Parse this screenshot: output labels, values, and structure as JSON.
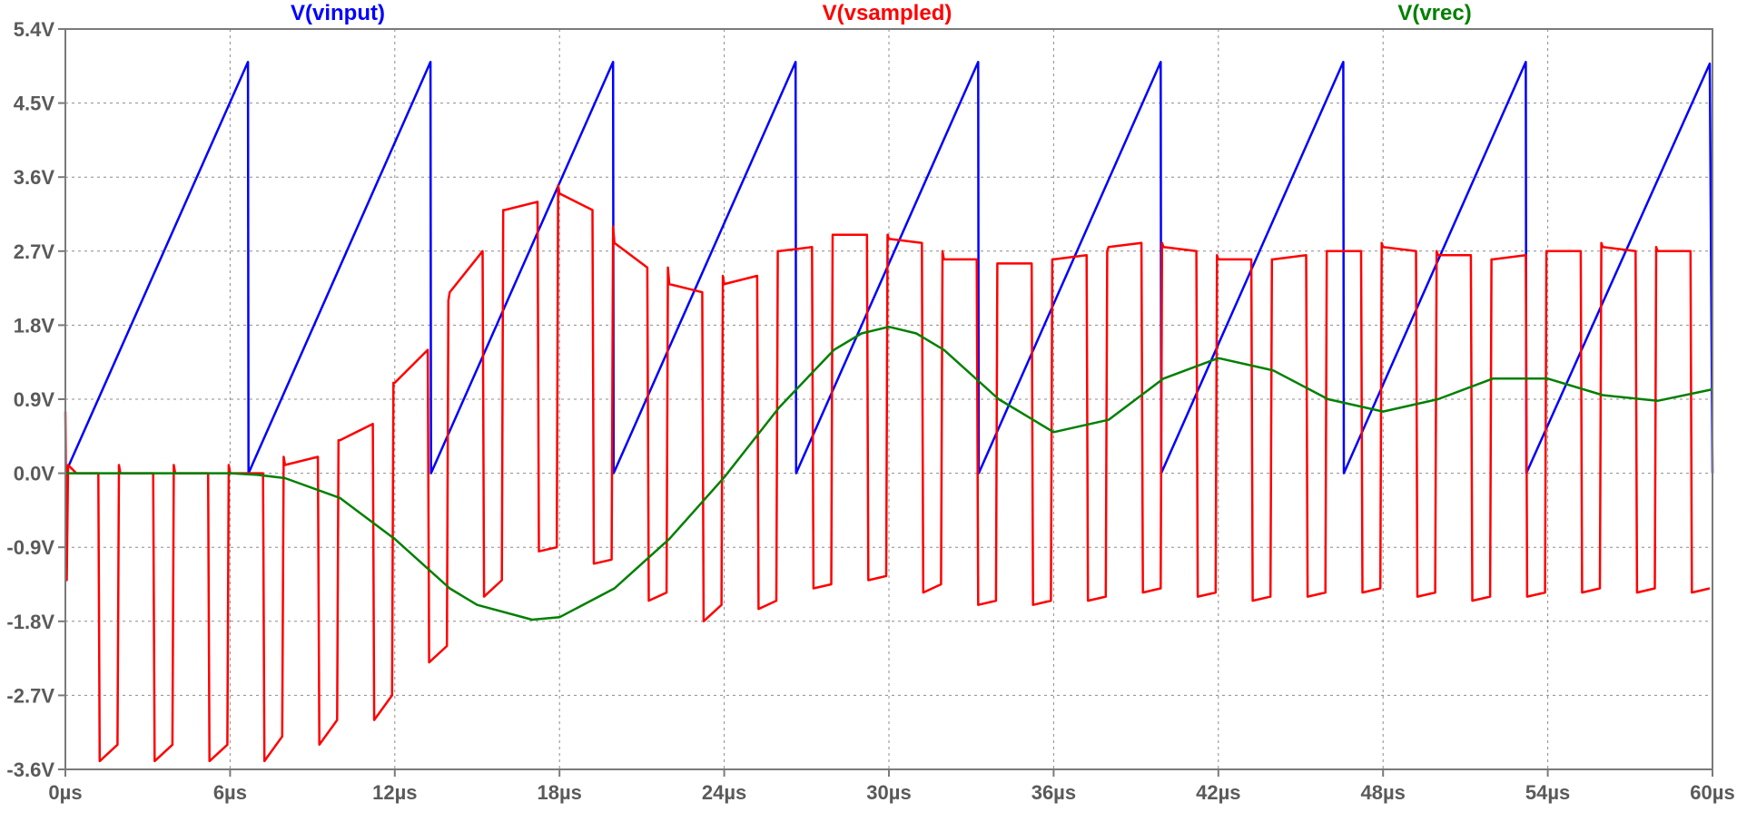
{
  "chart_data": {
    "type": "line",
    "title": "",
    "xlabel": "",
    "ylabel": "",
    "xlim": [
      0,
      60
    ],
    "ylim": [
      -3.6,
      5.4
    ],
    "x_unit": "µs",
    "y_unit": "V",
    "grid": true,
    "x_ticks": [
      0,
      6,
      12,
      18,
      24,
      30,
      36,
      42,
      48,
      54,
      60
    ],
    "x_tick_labels": [
      "0µs",
      "6µs",
      "12µs",
      "18µs",
      "24µs",
      "30µs",
      "36µs",
      "42µs",
      "48µs",
      "54µs",
      "60µs"
    ],
    "y_ticks": [
      5.4,
      4.5,
      3.6,
      2.7,
      1.8,
      0.9,
      0.0,
      -0.9,
      -1.8,
      -2.7,
      -3.6
    ],
    "y_tick_labels": [
      "5.4V",
      "4.5V",
      "3.6V",
      "2.7V",
      "1.8V",
      "0.9V",
      "0.0V",
      "-0.9V",
      "-1.8V",
      "-2.7V",
      "-3.6V"
    ],
    "legend_position": "top",
    "series": [
      {
        "name": "V(vinput)",
        "color": "#0000ff",
        "description_type": "sawtooth",
        "x": [
          0,
          6.65,
          6.67,
          13.3,
          13.32,
          19.95,
          19.97,
          26.6,
          26.62,
          33.25,
          33.27,
          39.9,
          39.92,
          46.55,
          46.57,
          53.2,
          53.22,
          59.9,
          60
        ],
        "y": [
          0,
          5.0,
          0,
          5.0,
          0,
          5.0,
          0,
          5.0,
          0,
          5.0,
          0,
          5.0,
          0,
          5.0,
          0,
          5.0,
          0,
          4.98,
          0
        ]
      },
      {
        "name": "V(vsampled)",
        "color": "#ff0000",
        "description_type": "sampled-pulse",
        "x": [
          0,
          0.05,
          0.1,
          0.4,
          1.2,
          1.25,
          1.9,
          1.95,
          2.0,
          2.2,
          3.2,
          3.25,
          3.9,
          3.95,
          4.0,
          4.2,
          5.2,
          5.25,
          5.9,
          5.95,
          6.0,
          6.2,
          7.2,
          7.25,
          7.9,
          7.95,
          8.0,
          9.2,
          9.25,
          9.9,
          9.95,
          10.0,
          11.2,
          11.25,
          11.9,
          11.95,
          12.0,
          13.2,
          13.25,
          13.9,
          13.95,
          14.0,
          15.2,
          15.25,
          15.9,
          15.95,
          16.0,
          17.2,
          17.25,
          17.9,
          17.95,
          18.0,
          19.2,
          19.25,
          19.9,
          19.95,
          20.0,
          21.2,
          21.25,
          21.9,
          21.95,
          22.0,
          23.2,
          23.25,
          23.9,
          23.95,
          24.0,
          25.2,
          25.25,
          25.9,
          25.95,
          26.0,
          27.2,
          27.25,
          27.9,
          27.95,
          28.0,
          29.2,
          29.25,
          29.9,
          29.95,
          30.0,
          31.2,
          31.25,
          31.9,
          31.95,
          32.0,
          33.2,
          33.25,
          33.9,
          33.95,
          34.0,
          35.2,
          35.25,
          35.9,
          35.95,
          36.0,
          37.2,
          37.25,
          37.9,
          37.95,
          38.0,
          39.2,
          39.25,
          39.9,
          39.95,
          40.0,
          41.2,
          41.25,
          41.9,
          41.95,
          42.0,
          43.2,
          43.25,
          43.9,
          43.95,
          44.0,
          45.2,
          45.25,
          45.9,
          45.95,
          46.0,
          47.2,
          47.25,
          47.9,
          47.95,
          48.0,
          49.2,
          49.25,
          49.9,
          49.95,
          50.0,
          51.2,
          51.25,
          51.9,
          51.95,
          52.0,
          53.2,
          53.25,
          53.9,
          53.95,
          54.0,
          55.2,
          55.25,
          55.9,
          55.95,
          56.0,
          57.2,
          57.25,
          57.9,
          57.95,
          58.0,
          59.2,
          59.25,
          59.9
        ],
        "y": [
          0.75,
          -1.3,
          0.1,
          0.0,
          0.0,
          -3.5,
          -3.3,
          0.1,
          0.0,
          0.0,
          0.0,
          -3.5,
          -3.3,
          0.1,
          0.0,
          0.0,
          0.0,
          -3.5,
          -3.3,
          0.1,
          0.0,
          0.0,
          0.0,
          -3.5,
          -3.2,
          0.2,
          0.1,
          0.2,
          -3.3,
          -3.0,
          0.4,
          0.4,
          0.6,
          -3.0,
          -2.7,
          1.1,
          1.1,
          1.5,
          -2.3,
          -2.1,
          2.1,
          2.2,
          2.7,
          -1.5,
          -1.3,
          3.2,
          3.2,
          3.3,
          -0.95,
          -0.9,
          3.5,
          3.4,
          3.2,
          -1.1,
          -1.05,
          3.0,
          2.8,
          2.5,
          -1.55,
          -1.45,
          2.5,
          2.3,
          2.2,
          -1.8,
          -1.6,
          2.4,
          2.3,
          2.4,
          -1.65,
          -1.55,
          2.7,
          2.7,
          2.75,
          -1.4,
          -1.35,
          2.9,
          2.9,
          2.9,
          -1.3,
          -1.25,
          2.9,
          2.85,
          2.8,
          -1.45,
          -1.35,
          2.7,
          2.6,
          2.6,
          -1.6,
          -1.55,
          2.55,
          2.55,
          2.55,
          -1.6,
          -1.55,
          2.6,
          2.6,
          2.65,
          -1.55,
          -1.5,
          2.7,
          2.75,
          2.8,
          -1.45,
          -1.4,
          2.8,
          2.75,
          2.7,
          -1.5,
          -1.45,
          2.65,
          2.6,
          2.6,
          -1.55,
          -1.5,
          2.6,
          2.6,
          2.65,
          -1.5,
          -1.45,
          2.7,
          2.7,
          2.7,
          -1.45,
          -1.4,
          2.8,
          2.75,
          2.7,
          -1.5,
          -1.45,
          2.7,
          2.65,
          2.65,
          -1.55,
          -1.5,
          2.6,
          2.6,
          2.65,
          -1.5,
          -1.45,
          2.7,
          2.7,
          2.7,
          -1.45,
          -1.4,
          2.8,
          2.75,
          2.7,
          -1.45,
          -1.4,
          2.75,
          2.7,
          2.7,
          -1.45,
          -1.4
        ]
      },
      {
        "name": "V(vrec)",
        "color": "#008000",
        "description_type": "reconstructed",
        "x": [
          0,
          2,
          4,
          6,
          7,
          8,
          10,
          12,
          14,
          15,
          17,
          18,
          20,
          22,
          24,
          26,
          28,
          29,
          30,
          31,
          32,
          34,
          36,
          38,
          40,
          42,
          44,
          46,
          48,
          50,
          52,
          54,
          56,
          58,
          60
        ],
        "y": [
          0,
          0,
          0,
          0,
          -0.02,
          -0.06,
          -0.3,
          -0.8,
          -1.4,
          -1.6,
          -1.78,
          -1.75,
          -1.4,
          -0.8,
          -0.05,
          0.8,
          1.5,
          1.7,
          1.78,
          1.7,
          1.5,
          0.9,
          0.5,
          0.65,
          1.15,
          1.4,
          1.25,
          0.9,
          0.75,
          0.9,
          1.15,
          1.15,
          0.95,
          0.88,
          1.02
        ]
      }
    ]
  }
}
